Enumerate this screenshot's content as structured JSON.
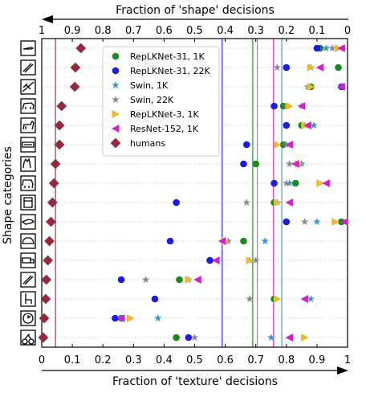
{
  "chart_data": {
    "type": "scatter",
    "title": "",
    "xlabel_top": "Fraction of 'shape' decisions",
    "xlabel_bottom": "Fraction of 'texture' decisions",
    "ylabel": "Shape categories",
    "xlim": [
      0,
      1
    ],
    "top_axis_ticks": [
      "1",
      "0.9",
      "0.8",
      "0.7",
      "0.6",
      "0.5",
      "0.4",
      "0.3",
      "0.2",
      "0.1",
      "0"
    ],
    "bottom_axis_ticks": [
      "0",
      "0.1",
      "0.2",
      "0.3",
      "0.4",
      "0.5",
      "0.6",
      "0.7",
      "0.8",
      "0.9",
      "1"
    ],
    "legend_position": "top-center",
    "grid": "horizontal dotted",
    "categories": [
      "knife",
      "bottle",
      "airplane",
      "bear",
      "dog",
      "keyboard",
      "cat",
      "elephant",
      "oven",
      "bird",
      "car",
      "truck",
      "bottle",
      "chair",
      "clock",
      "bicycle"
    ],
    "category_icons": [
      "knife-icon",
      "bottle-icon",
      "airplane-icon",
      "bear-icon",
      "dog-icon",
      "keyboard-icon",
      "cat-icon",
      "elephant-icon",
      "oven-icon",
      "bird-icon",
      "car-icon",
      "truck-icon",
      "bottle-icon",
      "chair-icon",
      "clock-icon",
      "bicycle-icon"
    ],
    "series": [
      {
        "name": "RepLKNet-31, 1K",
        "marker": "circle",
        "color": "#1a8a1a",
        "x": [
          0.91,
          0.97,
          0.88,
          0.79,
          0.85,
          0.79,
          0.7,
          0.83,
          0.76,
          0.98,
          0.66,
          0.55,
          0.45,
          0.76,
          0.26,
          0.44
        ],
        "line": 0.69
      },
      {
        "name": "RepLKNet-31, 22K",
        "marker": "circle",
        "color": "#1a1aee",
        "x": [
          0.9,
          0.8,
          0.98,
          0.76,
          0.8,
          0.67,
          0.66,
          0.76,
          0.44,
          0.8,
          0.42,
          0.55,
          0.26,
          0.37,
          0.24,
          0.48
        ],
        "line": 0.59
      },
      {
        "name": "Swin, 1K",
        "marker": "star",
        "color": "#2f97d6",
        "x": [
          0.93,
          0.88,
          0.98,
          0.85,
          0.89,
          0.8,
          0.85,
          0.81,
          0.77,
          0.9,
          0.73,
          0.68,
          0.48,
          0.88,
          0.38,
          0.75
        ],
        "line": 0.785
      },
      {
        "name": "Swin, 22K",
        "marker": "star",
        "color": "#8a8a8a",
        "x": [
          0.95,
          0.77,
          0.87,
          0.8,
          0.86,
          0.8,
          0.81,
          0.8,
          0.67,
          0.86,
          0.61,
          0.7,
          0.34,
          0.68,
          0.26,
          0.5
        ],
        "line": 0.705
      },
      {
        "name": "RepLKNet-3, 1K",
        "marker": "triangle-right",
        "color": "#f0b82a",
        "x": [
          0.97,
          0.88,
          0.88,
          0.81,
          0.86,
          0.77,
          0.84,
          0.91,
          0.77,
          0.96,
          0.6,
          0.68,
          0.48,
          0.77,
          0.29,
          0.86
        ],
        "line": null
      },
      {
        "name": "ResNet-152, 1K",
        "marker": "triangle-left",
        "color": "#d81bcc",
        "x": [
          0.98,
          0.91,
          0.98,
          0.85,
          0.87,
          0.81,
          0.83,
          0.93,
          0.81,
          0.99,
          0.59,
          0.57,
          0.51,
          0.86,
          0.26,
          0.81
        ],
        "line": 0.758
      },
      {
        "name": "humans",
        "marker": "diamond",
        "color": "#a3243a",
        "x": [
          0.128,
          0.11,
          0.108,
          0.065,
          0.058,
          0.058,
          0.045,
          0.04,
          0.035,
          0.03,
          0.025,
          0.02,
          0.015,
          0.013,
          0.008,
          0.005
        ],
        "line": 0.045
      }
    ]
  }
}
